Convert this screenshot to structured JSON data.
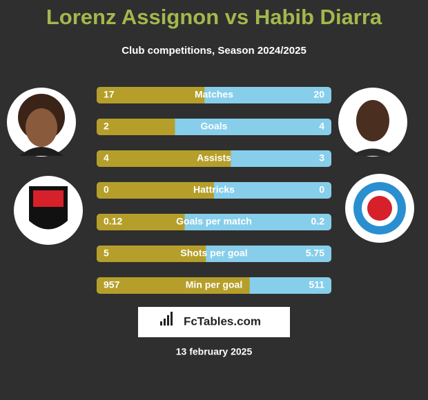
{
  "title": "Lorenz Assignon vs Habib Diarra",
  "subtitle": "Club competitions, Season 2024/2025",
  "rows": [
    {
      "label": "Matches",
      "left": 17,
      "right": 20
    },
    {
      "label": "Goals",
      "left": 2,
      "right": 4
    },
    {
      "label": "Assists",
      "left": 4,
      "right": 3
    },
    {
      "label": "Hattricks",
      "left": 0,
      "right": 0
    },
    {
      "label": "Goals per match",
      "left": 0.12,
      "right": 0.2
    },
    {
      "label": "Shots per goal",
      "left": 5,
      "right": 5.75
    },
    {
      "label": "Min per goal",
      "left": 957,
      "right": 511
    }
  ],
  "brand": "FcTables.com",
  "date": "13 february 2025"
}
